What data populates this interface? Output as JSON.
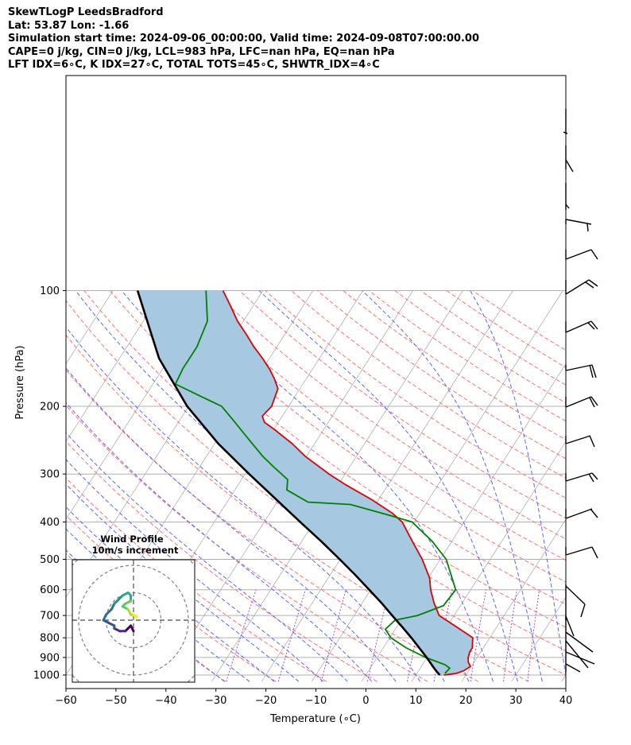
{
  "header": {
    "line1": "SkewTLogP LeedsBradford",
    "line2": "Lat: 53.87   Lon: -1.66",
    "line3": "Simulation start time: 2024-09-06_00:00:00, Valid time: 2024-09-08T07:00:00.00",
    "line4": "CAPE=0 j/kg, CIN=0 j/kg, LCL=983 hPa, LFC=nan hPa, EQ=nan hPa",
    "line5": "LFT IDX=6∘C, K IDX=27∘C, TOTAL TOTS=45∘C, SHWTR_IDX=4∘C"
  },
  "colors": {
    "temperature": "#e00000",
    "dewpoint": "#008000",
    "parcel": "#000000",
    "cape_fill": "#a6c8e0",
    "isotherm": "#b0b0b0",
    "dry_adiabat": "#ff6f6f",
    "moist_adiabat": "#5566ff",
    "mixing_ratio": "#9b4fc9"
  },
  "chart_data": [
    {
      "type": "line",
      "subtype": "skew-t log-p",
      "xlabel": "Temperature (∘C)",
      "ylabel": "Pressure (hPa)",
      "xlim": [
        -60,
        40
      ],
      "ylim": [
        1040,
        100
      ],
      "y_scale": "log",
      "x_ticks": [
        "−60",
        "−50",
        "−40",
        "−30",
        "−20",
        "−10",
        "0",
        "10",
        "20",
        "30",
        "40"
      ],
      "y_ticks": [
        "100",
        "200",
        "300",
        "400",
        "500",
        "600",
        "700",
        "800",
        "900",
        "1000"
      ],
      "grid": true,
      "series": [
        {
          "key": "temperature",
          "points": [
            [
              1000,
              15.6
            ],
            [
              990,
              17.9
            ],
            [
              975,
              19.0
            ],
            [
              950,
              19.8
            ],
            [
              925,
              18.8
            ],
            [
              900,
              18.2
            ],
            [
              870,
              17.8
            ],
            [
              850,
              17.8
            ],
            [
              800,
              16.6
            ],
            [
              750,
              12.0
            ],
            [
              700,
              7.0
            ],
            [
              650,
              4.4
            ],
            [
              600,
              2.0
            ],
            [
              560,
              0.3
            ],
            [
              500,
              -3.6
            ],
            [
              450,
              -7.8
            ],
            [
              400,
              -12.4
            ],
            [
              380,
              -15.4
            ],
            [
              350,
              -21.3
            ],
            [
              320,
              -28.5
            ],
            [
              300,
              -33.2
            ],
            [
              270,
              -40.2
            ],
            [
              250,
              -44.5
            ],
            [
              230,
              -49.8
            ],
            [
              220,
              -52.8
            ],
            [
              212,
              -54.0
            ],
            [
              200,
              -53.4
            ],
            [
              180,
              -54.4
            ],
            [
              170,
              -56.3
            ],
            [
              160,
              -58.6
            ],
            [
              150,
              -61.4
            ],
            [
              140,
              -64.6
            ],
            [
              130,
              -67.7
            ],
            [
              120,
              -71.2
            ],
            [
              110,
              -74.4
            ],
            [
              100,
              -78.0
            ]
          ]
        },
        {
          "key": "dewpoint",
          "points": [
            [
              990,
              15.6
            ],
            [
              960,
              15.9
            ],
            [
              940,
              14.5
            ],
            [
              900,
              9.7
            ],
            [
              850,
              4.6
            ],
            [
              800,
              0.2
            ],
            [
              760,
              -2.0
            ],
            [
              720,
              -1.2
            ],
            [
              700,
              2.7
            ],
            [
              660,
              6.6
            ],
            [
              600,
              7.0
            ],
            [
              500,
              1.2
            ],
            [
              450,
              -3.8
            ],
            [
              400,
              -10.4
            ],
            [
              385,
              -15.5
            ],
            [
              360,
              -25.0
            ],
            [
              355,
              -33.8
            ],
            [
              330,
              -39.6
            ],
            [
              310,
              -40.8
            ],
            [
              290,
              -44.7
            ],
            [
              270,
              -48.7
            ],
            [
              240,
              -54.5
            ],
            [
              220,
              -58.7
            ],
            [
              200,
              -63.4
            ],
            [
              185,
              -70.5
            ],
            [
              175,
              -75.5
            ],
            [
              160,
              -76.0
            ],
            [
              140,
              -76.0
            ],
            [
              120,
              -77.2
            ],
            [
              100,
              -81.4
            ]
          ]
        },
        {
          "key": "parcel",
          "points": [
            [
              1000,
              14.8
            ],
            [
              983,
              13.9
            ],
            [
              950,
              12.3
            ],
            [
              900,
              9.9
            ],
            [
              850,
              7.2
            ],
            [
              800,
              4.3
            ],
            [
              750,
              1.1
            ],
            [
              700,
              -2.4
            ],
            [
              650,
              -6.1
            ],
            [
              600,
              -10.3
            ],
            [
              550,
              -14.9
            ],
            [
              500,
              -20.1
            ],
            [
              450,
              -26.0
            ],
            [
              400,
              -32.8
            ],
            [
              350,
              -40.4
            ],
            [
              300,
              -49.2
            ],
            [
              250,
              -59.3
            ],
            [
              200,
              -70.3
            ],
            [
              150,
              -82.1
            ],
            [
              100,
              -95.1
            ]
          ]
        }
      ]
    },
    {
      "type": "line",
      "subtype": "hodograph",
      "title": "Wind Profile",
      "subtitle": "10m/s increment",
      "ring_increment": 10,
      "ring_count": 3,
      "series": [
        {
          "key": "hodograph",
          "points": [
            [
              0,
              -4
            ],
            [
              -1,
              -2
            ],
            [
              -3,
              -4
            ],
            [
              -5,
              -4
            ],
            [
              -7,
              -3
            ],
            [
              -7,
              -2
            ],
            [
              -9,
              -1
            ],
            [
              -11,
              0
            ],
            [
              -10,
              2
            ],
            [
              -8,
              4
            ],
            [
              -7,
              6
            ],
            [
              -6,
              7
            ],
            [
              -4,
              9
            ],
            [
              -2,
              10
            ],
            [
              -1,
              9
            ],
            [
              -1,
              7
            ],
            [
              -3,
              6
            ],
            [
              -4,
              5
            ],
            [
              -2,
              4
            ],
            [
              -1,
              2
            ],
            [
              0,
              2
            ],
            [
              1,
              1
            ],
            [
              1,
              1.5
            ]
          ]
        }
      ]
    }
  ]
}
